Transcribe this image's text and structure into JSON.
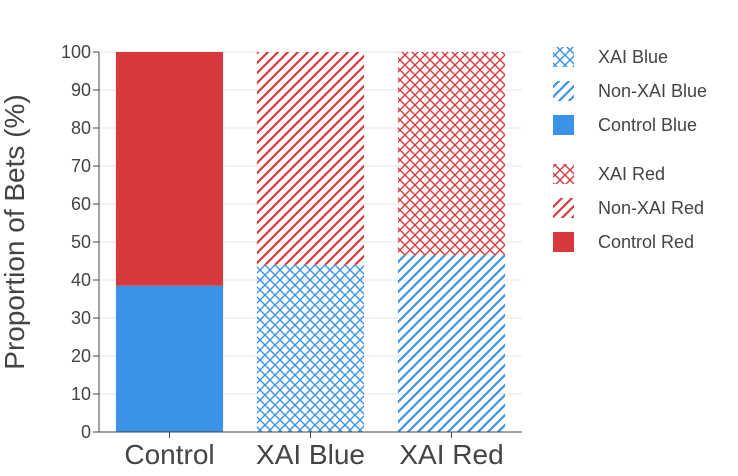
{
  "chart_data": {
    "type": "bar",
    "stacked": true,
    "categories": [
      "Control",
      "XAI Blue",
      "XAI Red"
    ],
    "ylabel": "Proportion of Bets (%)",
    "xlabel": "",
    "ylim": [
      0,
      100
    ],
    "yticks": [
      0,
      10,
      20,
      30,
      40,
      50,
      60,
      70,
      80,
      90,
      100
    ],
    "grid": true,
    "legend_position": "right",
    "colors": {
      "blue": "#3a93e6",
      "red": "#d63a3c",
      "grid": "#e6e6e6",
      "axis": "#444444"
    },
    "series": [
      {
        "name": "XAI Blue",
        "color": "blue",
        "pattern": "crosshatch",
        "values": [
          0,
          44,
          0
        ]
      },
      {
        "name": "Non-XAI Blue",
        "color": "blue",
        "pattern": "diagonal",
        "values": [
          0,
          0,
          46.5
        ]
      },
      {
        "name": "Control Blue",
        "color": "blue",
        "pattern": "solid",
        "values": [
          38.5,
          0,
          0
        ]
      },
      {
        "name": "XAI Red",
        "color": "red",
        "pattern": "crosshatch",
        "values": [
          0,
          0,
          53.5
        ]
      },
      {
        "name": "Non-XAI Red",
        "color": "red",
        "pattern": "diagonal",
        "values": [
          0,
          56,
          0
        ]
      },
      {
        "name": "Control Red",
        "color": "red",
        "pattern": "solid",
        "values": [
          61.5,
          0,
          0
        ]
      }
    ]
  }
}
